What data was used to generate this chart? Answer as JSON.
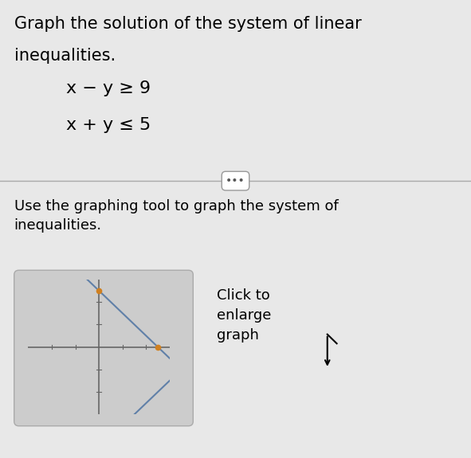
{
  "title_line1": "Graph the solution of the system of linear",
  "title_line2": "inequalities.",
  "ineq1": "x − y ≥ 9",
  "ineq2": "x + y ≤ 5",
  "body_text": "Use the graphing tool to graph the system of\ninequalities.",
  "click_text": "Click to\nenlarge\ngraph",
  "background_color": "#e8e8e8",
  "thumbnail_bg": "#cccccc",
  "line_color": "#6080a8",
  "dot_color": "#d08020",
  "axis_color": "#666666",
  "divider_color": "#aaaaaa",
  "xlim": [
    -6,
    6
  ],
  "ylim": [
    -6,
    6
  ],
  "title_fontsize": 15,
  "body_fontsize": 13,
  "click_fontsize": 13,
  "ineq_fontsize": 16
}
